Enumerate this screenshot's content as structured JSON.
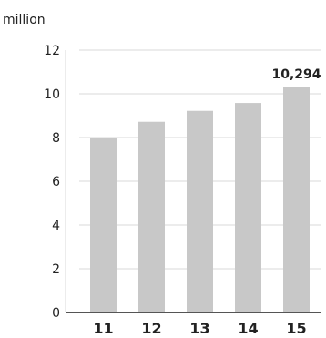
{
  "chart_data": {
    "type": "bar",
    "unit_label": "million",
    "categories": [
      "11",
      "12",
      "13",
      "14",
      "15"
    ],
    "values": [
      8.0,
      8.72,
      9.22,
      9.58,
      10.294
    ],
    "data_label": {
      "index": 4,
      "text": "10,294"
    },
    "y_ticks": [
      "0",
      "2",
      "4",
      "6",
      "8",
      "10",
      "12"
    ],
    "ylim": [
      0,
      12
    ],
    "grid": true,
    "title": "",
    "xlabel": "",
    "ylabel": ""
  },
  "colors": {
    "bar": "#c8c8c8",
    "grid": "#d9d9d9",
    "axis": "#555555",
    "text": "#222222"
  }
}
